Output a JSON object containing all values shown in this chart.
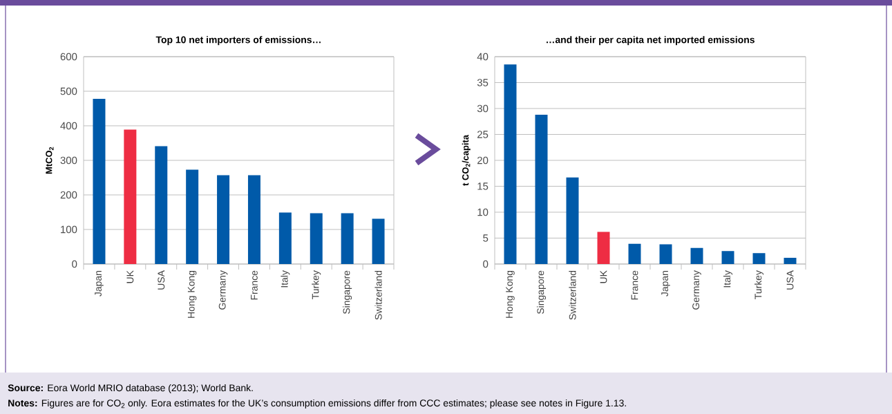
{
  "chart_data": [
    {
      "type": "bar",
      "title": "Top 10 net importers of emissions…",
      "ylabel": "MtCO$_{2}$",
      "categories": [
        "Japan",
        "UK",
        "USA",
        "Hong Kong",
        "Germany",
        "France",
        "Italy",
        "Turkey",
        "Singapore",
        "Switzerland"
      ],
      "values": [
        478,
        389,
        341,
        273,
        257,
        257,
        149,
        147,
        147,
        131
      ],
      "colors": [
        "#005aa9",
        "#ee2d43",
        "#005aa9",
        "#005aa9",
        "#005aa9",
        "#005aa9",
        "#005aa9",
        "#005aa9",
        "#005aa9",
        "#005aa9"
      ],
      "ylim": [
        0,
        600
      ],
      "yticks": [
        0,
        100,
        200,
        300,
        400,
        500,
        600
      ],
      "grid": "y",
      "annotations": [
        "**Source:** Eora World MRIO database (2013); World Bank.",
        "**Notes:** Figures are for CO$_{2}$ only. Eora estimates for the UK’s consumption emissions differ from CCC estimates; please see notes in Figure 1.13."
      ]
    },
    {
      "type": "bar",
      "title": "…and their per capita net imported emissions",
      "ylabel": "t CO$_{2}$/capita",
      "categories": [
        "Hong Kong",
        "Singapore",
        "Switzerland",
        "UK",
        "France",
        "Japan",
        "Germany",
        "Italy",
        "Turkey",
        "USA"
      ],
      "values": [
        38.5,
        28.8,
        16.7,
        6.2,
        3.9,
        3.8,
        3.1,
        2.5,
        2.1,
        1.2
      ],
      "colors": [
        "#005aa9",
        "#005aa9",
        "#005aa9",
        "#ee2d43",
        "#005aa9",
        "#005aa9",
        "#005aa9",
        "#005aa9",
        "#005aa9",
        "#005aa9"
      ],
      "ylim": [
        0,
        40
      ],
      "yticks": [
        0,
        5,
        10,
        15,
        20,
        25,
        30,
        35,
        40
      ],
      "grid": "y"
    }
  ]
}
